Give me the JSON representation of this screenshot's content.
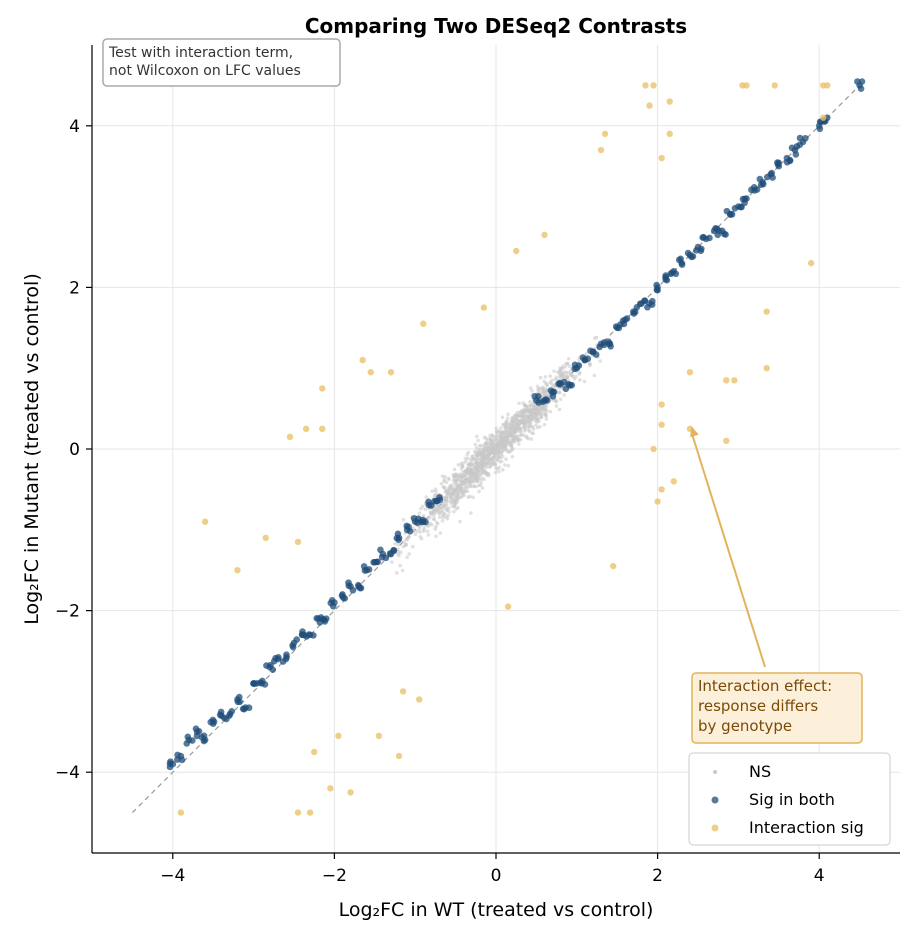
{
  "chart_data": {
    "type": "scatter",
    "title": "Comparing Two DESeq2 Contrasts",
    "xlabel": "Log₂FC in WT (treated vs control)",
    "ylabel": "Log₂FC in Mutant (treated vs control)",
    "xlim": [
      -5,
      5
    ],
    "ylim": [
      -5,
      5
    ],
    "xticks": [
      -4,
      -2,
      0,
      2,
      4
    ],
    "yticks": [
      -4,
      -2,
      0,
      2,
      4
    ],
    "xtick_labels": [
      "−4",
      "−2",
      "0",
      "2",
      "4"
    ],
    "ytick_labels": [
      "−4",
      "−2",
      "0",
      "2",
      "4"
    ],
    "grid": true,
    "legend_position": "lower-right",
    "diagonal_reference": [
      [
        -4.5,
        -4.5
      ],
      [
        4.5,
        4.5
      ]
    ],
    "colors": {
      "ns": "#c8c8c8",
      "sig_both": "#1f4e79",
      "interaction": "#e8c36a",
      "diagonal": "#999999",
      "annotation_text": "#7a4a08",
      "annotation_fill": "#fdf0da",
      "annotation_border": "#e2b35a"
    },
    "series": [
      {
        "name": "NS",
        "band": {
          "x_range": [
            -1.3,
            1.3
          ],
          "scatter_sd": 0.12
        }
      },
      {
        "name": "Sig in both",
        "points": [
          [
            -4.0,
            -3.9
          ],
          [
            -3.9,
            -3.8
          ],
          [
            -3.8,
            -3.6
          ],
          [
            -3.7,
            -3.5
          ],
          [
            -3.6,
            -3.6
          ],
          [
            -3.5,
            -3.4
          ],
          [
            -3.4,
            -3.3
          ],
          [
            -3.3,
            -3.3
          ],
          [
            -3.2,
            -3.1
          ],
          [
            -3.1,
            -3.2
          ],
          [
            -3.0,
            -2.9
          ],
          [
            -2.9,
            -2.9
          ],
          [
            -2.8,
            -2.7
          ],
          [
            -2.7,
            -2.6
          ],
          [
            -2.6,
            -2.6
          ],
          [
            -2.5,
            -2.4
          ],
          [
            -2.4,
            -2.3
          ],
          [
            -2.3,
            -2.3
          ],
          [
            -2.2,
            -2.1
          ],
          [
            -2.1,
            -2.1
          ],
          [
            -2.0,
            -1.9
          ],
          [
            -1.9,
            -1.8
          ],
          [
            -1.8,
            -1.7
          ],
          [
            -1.7,
            -1.7
          ],
          [
            -1.6,
            -1.5
          ],
          [
            -1.5,
            -1.4
          ],
          [
            -1.4,
            -1.3
          ],
          [
            -1.3,
            -1.3
          ],
          [
            -1.2,
            -1.1
          ],
          [
            -1.1,
            -1.0
          ],
          [
            -1.0,
            -0.9
          ],
          [
            -0.9,
            -0.9
          ],
          [
            -0.8,
            -0.7
          ],
          [
            -0.7,
            -0.6
          ],
          [
            0.5,
            0.6
          ],
          [
            0.6,
            0.6
          ],
          [
            0.7,
            0.7
          ],
          [
            0.8,
            0.8
          ],
          [
            0.9,
            0.8
          ],
          [
            1.0,
            1.0
          ],
          [
            1.1,
            1.1
          ],
          [
            1.2,
            1.2
          ],
          [
            1.3,
            1.3
          ],
          [
            1.4,
            1.3
          ],
          [
            1.5,
            1.5
          ],
          [
            1.6,
            1.6
          ],
          [
            1.7,
            1.7
          ],
          [
            1.8,
            1.8
          ],
          [
            1.9,
            1.8
          ],
          [
            2.0,
            2.0
          ],
          [
            2.1,
            2.1
          ],
          [
            2.2,
            2.2
          ],
          [
            2.3,
            2.3
          ],
          [
            2.4,
            2.4
          ],
          [
            2.5,
            2.5
          ],
          [
            2.6,
            2.6
          ],
          [
            2.7,
            2.7
          ],
          [
            2.8,
            2.7
          ],
          [
            2.9,
            2.9
          ],
          [
            3.0,
            3.0
          ],
          [
            3.1,
            3.1
          ],
          [
            3.2,
            3.2
          ],
          [
            3.3,
            3.3
          ],
          [
            3.4,
            3.4
          ],
          [
            3.5,
            3.5
          ],
          [
            3.6,
            3.6
          ],
          [
            3.7,
            3.7
          ],
          [
            3.8,
            3.8
          ],
          [
            4.0,
            4.0
          ],
          [
            4.1,
            4.1
          ],
          [
            4.5,
            4.5
          ]
        ]
      },
      {
        "name": "Interaction sig",
        "points": [
          [
            1.85,
            4.5
          ],
          [
            1.95,
            4.5
          ],
          [
            3.05,
            4.5
          ],
          [
            3.1,
            4.5
          ],
          [
            3.45,
            4.5
          ],
          [
            4.05,
            4.5
          ],
          [
            4.1,
            4.5
          ],
          [
            2.15,
            4.3
          ],
          [
            1.9,
            4.25
          ],
          [
            4.05,
            4.1
          ],
          [
            1.35,
            3.9
          ],
          [
            2.15,
            3.9
          ],
          [
            1.3,
            3.7
          ],
          [
            2.05,
            3.6
          ],
          [
            0.6,
            2.65
          ],
          [
            0.25,
            2.45
          ],
          [
            3.9,
            2.3
          ],
          [
            -0.15,
            1.75
          ],
          [
            3.35,
            1.7
          ],
          [
            -0.9,
            1.55
          ],
          [
            -1.65,
            1.1
          ],
          [
            -1.55,
            0.95
          ],
          [
            -1.3,
            0.95
          ],
          [
            3.35,
            1.0
          ],
          [
            2.4,
            0.95
          ],
          [
            2.85,
            0.85
          ],
          [
            2.95,
            0.85
          ],
          [
            -2.15,
            0.75
          ],
          [
            2.05,
            0.55
          ],
          [
            2.4,
            0.25
          ],
          [
            2.05,
            0.3
          ],
          [
            -2.35,
            0.25
          ],
          [
            -2.15,
            0.25
          ],
          [
            -2.55,
            0.15
          ],
          [
            2.85,
            0.1
          ],
          [
            1.95,
            0.0
          ],
          [
            2.2,
            -0.4
          ],
          [
            2.05,
            -0.5
          ],
          [
            2.0,
            -0.65
          ],
          [
            -3.6,
            -0.9
          ],
          [
            -2.85,
            -1.1
          ],
          [
            -2.45,
            -1.15
          ],
          [
            1.45,
            -1.45
          ],
          [
            -3.2,
            -1.5
          ],
          [
            0.15,
            -1.95
          ],
          [
            -1.15,
            -3.0
          ],
          [
            -0.95,
            -3.1
          ],
          [
            -1.95,
            -3.55
          ],
          [
            -1.45,
            -3.55
          ],
          [
            -2.25,
            -3.75
          ],
          [
            -1.2,
            -3.8
          ],
          [
            -2.05,
            -4.2
          ],
          [
            -1.8,
            -4.25
          ],
          [
            -3.9,
            -4.5
          ],
          [
            -2.45,
            -4.5
          ],
          [
            -2.3,
            -4.5
          ]
        ]
      }
    ],
    "annotations": [
      {
        "text": "Test with interaction term,\nnot Wilcoxon on LFC values",
        "position": "top-left"
      },
      {
        "text": "Interaction effect:\nresponse differs\nby genotype",
        "arrow_to": [
          2.42,
          0.28
        ],
        "text_at": [
          2.5,
          -3.0
        ]
      }
    ]
  }
}
